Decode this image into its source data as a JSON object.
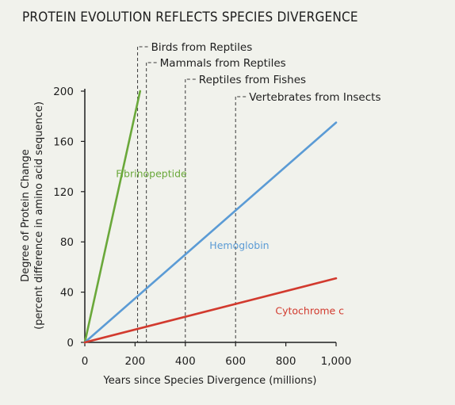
{
  "chart_data": {
    "type": "line",
    "title": "PROTEIN EVOLUTION REFLECTS SPECIES DIVERGENCE",
    "xlabel": "Years since Species Divergence (millions)",
    "ylabel_line1": "Degree of Protein Change",
    "ylabel_line2": "(percent difference in amino acid sequence)",
    "xlim": [
      0,
      1000
    ],
    "ylim": [
      0,
      200
    ],
    "xticks": [
      0,
      200,
      400,
      600,
      800,
      1000
    ],
    "xtick_labels": [
      "0",
      "200",
      "400",
      "600",
      "800",
      "1,000"
    ],
    "yticks": [
      0,
      40,
      80,
      120,
      160,
      200
    ],
    "ytick_labels": [
      "0",
      "40",
      "80",
      "120",
      "160",
      "200"
    ],
    "grid": false,
    "series": [
      {
        "name": "Fibrinopeptide",
        "color": "#6aa83a",
        "x": [
          0,
          220
        ],
        "y": [
          0,
          200
        ],
        "label_at": [
          265,
          134
        ],
        "label_anchor": "middle"
      },
      {
        "name": "Hemoglobin",
        "color": "#5b9bd5",
        "x": [
          0,
          1000
        ],
        "y": [
          0,
          175
        ],
        "label_at": [
          615,
          77
        ],
        "label_anchor": "middle"
      },
      {
        "name": "Cytochrome c",
        "color": "#d23a2e",
        "x": [
          0,
          1000
        ],
        "y": [
          0,
          51
        ],
        "label_at": [
          895,
          25
        ],
        "label_anchor": "middle"
      }
    ],
    "events": [
      {
        "label": "Birds from Reptiles",
        "x": 210
      },
      {
        "label": "Mammals from Reptiles",
        "x": 245
      },
      {
        "label": "Reptiles from Fishes",
        "x": 400
      },
      {
        "label": "Vertebrates from Insects",
        "x": 600
      }
    ]
  }
}
